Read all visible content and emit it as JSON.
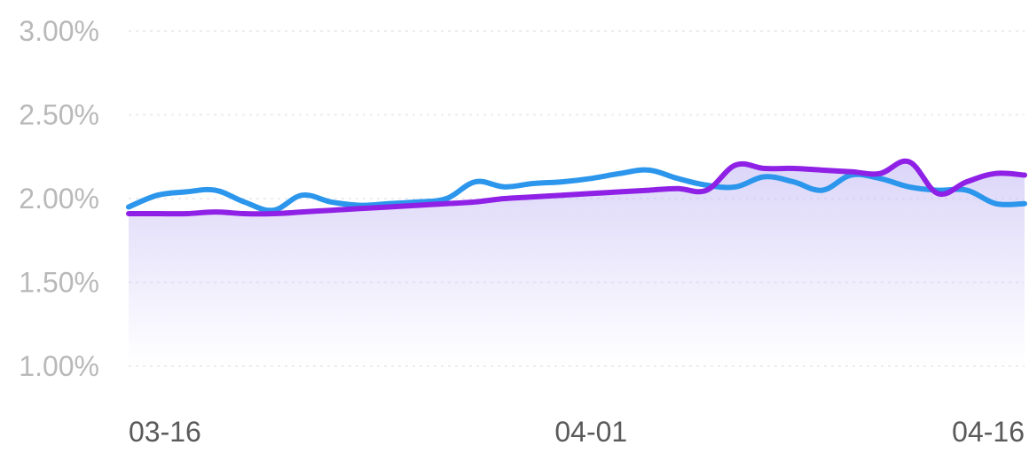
{
  "chart_data": {
    "type": "line",
    "title": "",
    "xlabel": "",
    "ylabel": "",
    "x_ticks": [
      "03-16",
      "04-01",
      "04-16"
    ],
    "y_ticks": [
      "1.00%",
      "1.50%",
      "2.00%",
      "2.50%",
      "3.00%"
    ],
    "ylim": [
      1.0,
      3.0
    ],
    "y_unit": "%",
    "grid": true,
    "legend": "none",
    "x_range": [
      "03-16",
      "04-16"
    ],
    "x": [
      "03-16",
      "03-17",
      "03-18",
      "03-19",
      "03-20",
      "03-21",
      "03-22",
      "03-23",
      "03-24",
      "03-25",
      "03-26",
      "03-27",
      "03-28",
      "03-29",
      "03-30",
      "03-31",
      "04-01",
      "04-02",
      "04-03",
      "04-04",
      "04-05",
      "04-06",
      "04-07",
      "04-08",
      "04-09",
      "04-10",
      "04-11",
      "04-12",
      "04-13",
      "04-14",
      "04-15",
      "04-16"
    ],
    "series": [
      {
        "color": "#2b96ec",
        "values": [
          1.95,
          2.02,
          2.04,
          2.05,
          1.98,
          1.93,
          2.02,
          1.98,
          1.96,
          1.97,
          1.98,
          2.0,
          2.1,
          2.07,
          2.09,
          2.1,
          2.12,
          2.15,
          2.17,
          2.12,
          2.08,
          2.07,
          2.13,
          2.1,
          2.05,
          2.14,
          2.12,
          2.07,
          2.05,
          2.05,
          1.97,
          1.97
        ]
      },
      {
        "color": "#8f21e6",
        "values": [
          1.91,
          1.91,
          1.91,
          1.92,
          1.91,
          1.91,
          1.92,
          1.93,
          1.94,
          1.95,
          1.96,
          1.97,
          1.98,
          2.0,
          2.01,
          2.02,
          2.03,
          2.04,
          2.05,
          2.06,
          2.05,
          2.2,
          2.18,
          2.18,
          2.17,
          2.16,
          2.15,
          2.22,
          2.03,
          2.1,
          2.15,
          2.14
        ]
      }
    ],
    "area_fill": {
      "color": "#c8bff5",
      "under_series": 1
    }
  }
}
